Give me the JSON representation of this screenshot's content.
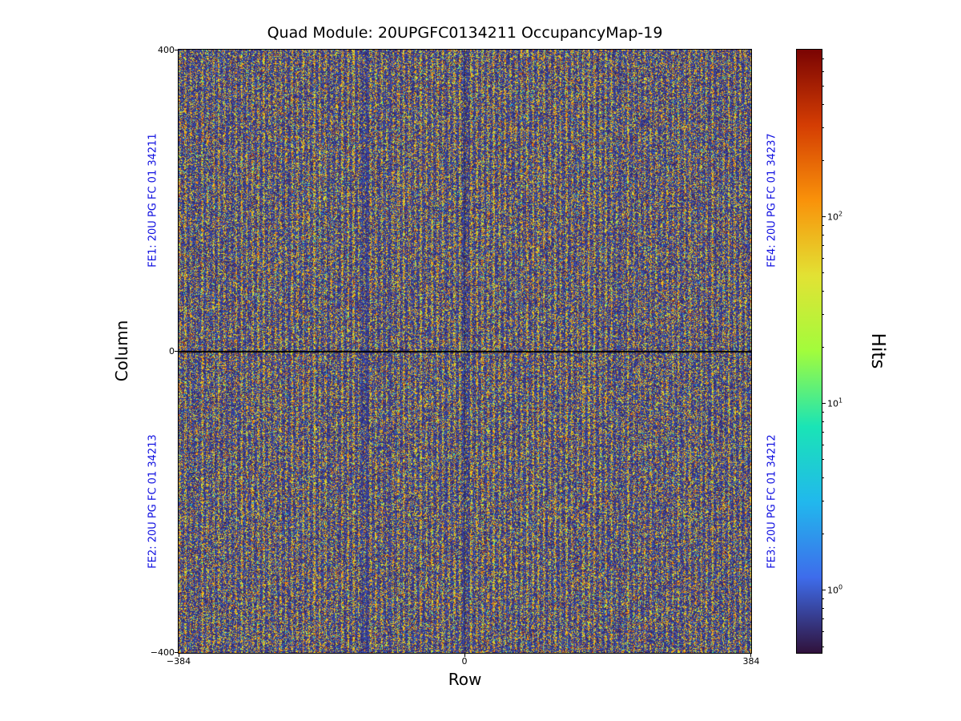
{
  "figure": {
    "title": "Quad Module: 20UPGFC0134211 OccupancyMap-19",
    "xlabel": "Row",
    "ylabel": "Column",
    "xticks": [
      "−384",
      "0",
      "384"
    ],
    "yticks": [
      "400",
      "0",
      "−400"
    ],
    "fe_labels": {
      "color": "#0d0de0",
      "fe1": "FE1: 20U PG FC 01 34211",
      "fe2": "FE2: 20U PG FC 01 34213",
      "fe3": "FE3: 20U PG FC 01 34212",
      "fe4": "FE4: 20U PG FC 01 34237"
    },
    "colorbar": {
      "label": "Hits",
      "scale": "log",
      "vmin": 0.46,
      "vmax": 780,
      "ticks": [
        {
          "base": "10",
          "exp": 2
        },
        {
          "base": "10",
          "exp": 1
        },
        {
          "base": "10",
          "exp": 0
        }
      ]
    }
  },
  "chart_data": {
    "type": "heatmap",
    "title": "Quad Module: 20UPGFC0134211 OccupancyMap-19",
    "xlabel": "Row",
    "ylabel": "Column",
    "xlim": [
      -384,
      384
    ],
    "ylim": [
      -400,
      400
    ],
    "xticks": [
      -384,
      0,
      384
    ],
    "yticks": [
      -400,
      0,
      400
    ],
    "grid": false,
    "colorbar_label": "Hits",
    "color_scale": "log",
    "color_range_approx": [
      0.46,
      780
    ],
    "colorbar_tick_values": [
      1,
      10,
      100
    ],
    "colormap": {
      "name": "turbo",
      "stops": [
        {
          "t": 0.0,
          "color": "#30123b"
        },
        {
          "t": 0.125,
          "color": "#3e6ceb"
        },
        {
          "t": 0.25,
          "color": "#21b8ed"
        },
        {
          "t": 0.375,
          "color": "#1ae4b6"
        },
        {
          "t": 0.5,
          "color": "#a2fc3c"
        },
        {
          "t": 0.625,
          "color": "#e2e234"
        },
        {
          "t": 0.75,
          "color": "#f9920a"
        },
        {
          "t": 0.875,
          "color": "#d43d03"
        },
        {
          "t": 1.0,
          "color": "#7a0403"
        }
      ]
    },
    "frontends": [
      {
        "position": "top-left",
        "label": "FE1: 20U PG FC 01 34211"
      },
      {
        "position": "bottom-left",
        "label": "FE2: 20U PG FC 01 34213"
      },
      {
        "position": "bottom-right",
        "label": "FE3: 20U PG FC 01 34212"
      },
      {
        "position": "top-right",
        "label": "FE4: 20U PG FC 01 34237"
      }
    ],
    "pattern": "Dense pseudo-random pixel-occupancy speckle over the full 768x800 sensor: most pixels low (~0.5-2 hits, dark purple), frequent mid-high pixels (~50-300 hits, orange/red) arranged in fine vertical stripes, sparse cyan/blue mid values; solid black horizontal chip-boundary line at Column=0 and a faint darker vertical seam at Row=0.",
    "texture": {
      "seed": 19,
      "stripe_period": 7,
      "stripe_duty": 3,
      "hit_prob_high": 0.52,
      "hit_prob_low": 0.2,
      "dark_bands": [
        {
          "x": 233,
          "halfwidth": 4,
          "factor": 0.5
        },
        {
          "x": 357,
          "halfwidth": 2,
          "factor": 0.45
        }
      ]
    }
  }
}
